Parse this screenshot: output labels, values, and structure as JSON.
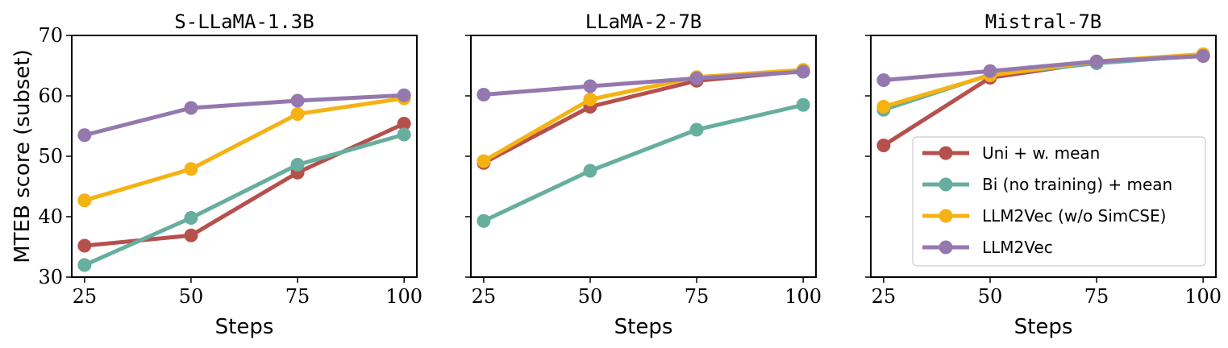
{
  "chart_data": [
    {
      "type": "line",
      "title": "S-LLaMA-1.3B",
      "xlabel": "Steps",
      "ylabel": "MTEB score (subset)",
      "x": [
        25,
        50,
        75,
        100
      ],
      "xlim": [
        22,
        103
      ],
      "ylim": [
        30,
        70
      ],
      "yticks": [
        30,
        40,
        50,
        60,
        70
      ],
      "series": [
        {
          "name": "Uni + w. mean",
          "color": "#B5504D",
          "values": [
            35.2,
            36.9,
            47.3,
            55.4
          ]
        },
        {
          "name": "Bi (no training) + mean",
          "color": "#67AE9F",
          "values": [
            32.0,
            39.8,
            48.6,
            53.6
          ]
        },
        {
          "name": "LLM2Vec (w/o SimCSE)",
          "color": "#F5B213",
          "values": [
            42.7,
            47.9,
            57.0,
            59.6
          ]
        },
        {
          "name": "LLM2Vec",
          "color": "#9478AE",
          "values": [
            53.5,
            58.0,
            59.2,
            60.1
          ]
        }
      ]
    },
    {
      "type": "line",
      "title": "LLaMA-2-7B",
      "xlabel": "Steps",
      "ylabel": "",
      "x": [
        25,
        50,
        75,
        100
      ],
      "xlim": [
        22,
        103
      ],
      "ylim": [
        30,
        70
      ],
      "yticks": [
        30,
        40,
        50,
        60,
        70
      ],
      "series": [
        {
          "name": "Uni + w. mean",
          "color": "#B5504D",
          "values": [
            48.9,
            58.2,
            62.5,
            64.1
          ]
        },
        {
          "name": "Bi (no training) + mean",
          "color": "#67AE9F",
          "values": [
            39.3,
            47.6,
            54.4,
            58.5
          ]
        },
        {
          "name": "LLM2Vec (w/o SimCSE)",
          "color": "#F5B213",
          "values": [
            49.2,
            59.4,
            63.1,
            64.3
          ]
        },
        {
          "name": "LLM2Vec",
          "color": "#9478AE",
          "values": [
            60.2,
            61.6,
            62.9,
            64.0
          ]
        }
      ]
    },
    {
      "type": "line",
      "title": "Mistral-7B",
      "xlabel": "Steps",
      "ylabel": "",
      "x": [
        25,
        50,
        75,
        100
      ],
      "xlim": [
        22,
        103
      ],
      "ylim": [
        30,
        70
      ],
      "yticks": [
        30,
        40,
        50,
        60,
        70
      ],
      "legend": "lower-right",
      "series": [
        {
          "name": "Uni + w. mean",
          "color": "#B5504D",
          "values": [
            51.8,
            63.0,
            65.6,
            66.6
          ]
        },
        {
          "name": "Bi (no training) + mean",
          "color": "#67AE9F",
          "values": [
            57.7,
            63.5,
            65.4,
            66.7
          ]
        },
        {
          "name": "LLM2Vec (w/o SimCSE)",
          "color": "#F5B213",
          "values": [
            58.2,
            63.4,
            65.7,
            66.9
          ]
        },
        {
          "name": "LLM2Vec",
          "color": "#9478AE",
          "values": [
            62.6,
            64.1,
            65.7,
            66.6
          ]
        }
      ]
    }
  ]
}
